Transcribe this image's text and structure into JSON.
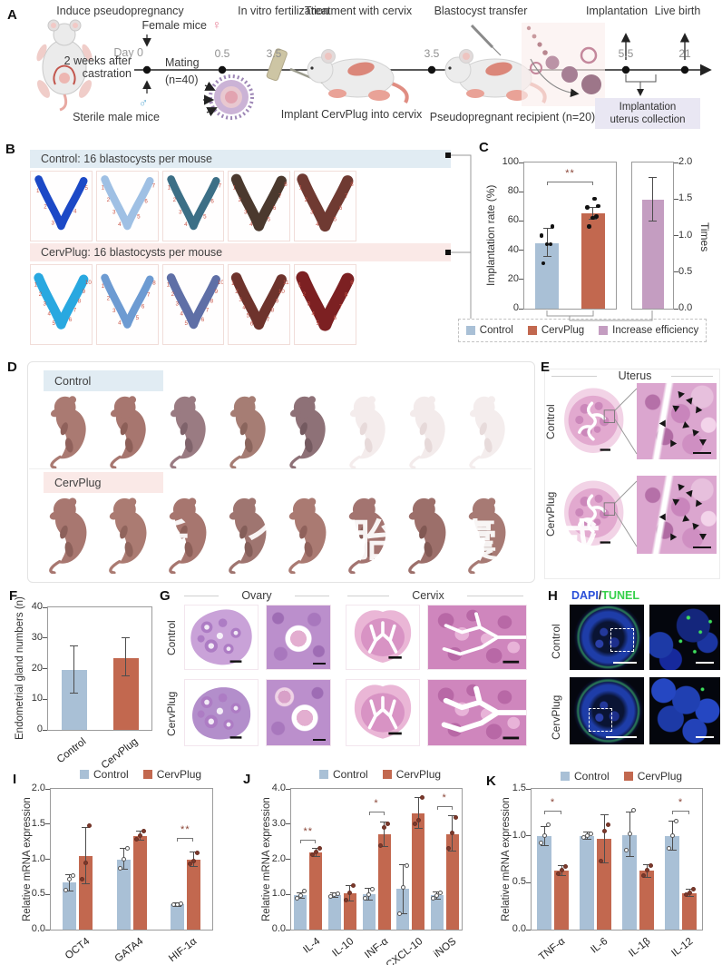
{
  "colors": {
    "control": "#a9c0d6",
    "cervplug": "#c2684f",
    "increase": "#c49dc1",
    "control_band": "#e1ecf3",
    "cervplug_band": "#fae9e7",
    "collection_box": "#e9e7f3",
    "dapi_blue": "#2b50d8",
    "tunel_green": "#35d04a"
  },
  "panelA": {
    "label": "A",
    "titles": {
      "step1": "Induce pseudopregnancy",
      "step2": "In vitro fertilization",
      "step3": "Treatment with cervix",
      "step4": "Blastocyst transfer",
      "step5": "Implantation",
      "step6": "Live birth"
    },
    "female_mice": "Female mice",
    "female_symbol": "♀",
    "male_symbol": "♂",
    "castration_line1": "2 weeks after",
    "castration_line2": "castration",
    "sterile_male": "Sterile male mice",
    "day0": "Day 0",
    "mating_line1": "Mating",
    "mating_line2": "(n=40)",
    "t05": "0.5",
    "t35a": "3.5",
    "t35b": "3.5",
    "t55": "5.5",
    "t21": "21",
    "implant_caption": "Implant CervPlug into cervix",
    "recipient_caption": "Pseudopregnant recipient (n=20)",
    "collection_line1": "Implantation",
    "collection_line2": "uterus collection"
  },
  "panelB": {
    "label": "B",
    "control_header": "Control: 16 blastocysts per mouse",
    "cervplug_header": "CervPlug: 16 blastocysts per mouse",
    "control_uteri": [
      {
        "color": "#1c49c6",
        "sites": 5,
        "thick": 9
      },
      {
        "color": "#9fc0e4",
        "sites": 7,
        "thick": 9
      },
      {
        "color": "#3c6f86",
        "sites": 7,
        "thick": 9
      },
      {
        "color": "#4b392e",
        "sites": 8,
        "thick": 12
      },
      {
        "color": "#6f3a32",
        "sites": 8,
        "thick": 13
      }
    ],
    "cervplug_uteri": [
      {
        "color": "#29a8e0",
        "sites": 10,
        "thick": 11
      },
      {
        "color": "#6d9bd2",
        "sites": 8,
        "thick": 9
      },
      {
        "color": "#5f6fa6",
        "sites": 10,
        "thick": 10
      },
      {
        "color": "#6e332c",
        "sites": 11,
        "thick": 12
      },
      {
        "color": "#7c2022",
        "sites": 9,
        "thick": 15
      }
    ]
  },
  "panelD": {
    "label": "D",
    "control_label": "Control",
    "cervplug_label": "CervPlug",
    "watermark": "析 个 胎 囊 成",
    "control_pups": [
      {
        "fill": "#aa7a72",
        "shade": "#8f615b"
      },
      {
        "fill": "#a7766f",
        "shade": "#8c5f58"
      },
      {
        "fill": "#9a7b82",
        "shade": "#7f636b"
      },
      {
        "fill": "#a67d74",
        "shade": "#8a655d"
      },
      {
        "fill": "#8e7177",
        "shade": "#745a60"
      },
      {
        "fill": "#f4ecec",
        "shade": "#e7dada"
      },
      {
        "fill": "#f3ebeb",
        "shade": "#e6d9d9"
      },
      {
        "fill": "#f4eded",
        "shade": "#e7dbdb"
      }
    ],
    "cervplug_pups": [
      {
        "fill": "#a87770",
        "shade": "#8c605a"
      },
      {
        "fill": "#ab7b72",
        "shade": "#90645c"
      },
      {
        "fill": "#a7766f",
        "shade": "#8c5f58"
      },
      {
        "fill": "#9f7570",
        "shade": "#845e59"
      },
      {
        "fill": "#aa7a72",
        "shade": "#8f615b"
      },
      {
        "fill": "#a37470",
        "shade": "#885d59"
      },
      {
        "fill": "#9c6f6a",
        "shade": "#815853"
      },
      {
        "fill": "#a77a74",
        "shade": "#8c635d"
      }
    ]
  },
  "panelE": {
    "label": "E",
    "title": "Uterus",
    "control_label": "Control",
    "cervplug_label": "CervPlug"
  },
  "panelG": {
    "label": "G",
    "ovary_title": "Ovary",
    "cervix_title": "Cervix",
    "control_label": "Control",
    "cervplug_label": "CervPlug"
  },
  "panelH": {
    "label": "H",
    "title_dapi": "DAPI",
    "title_sep": "/",
    "title_tunel": "TUNEL",
    "control_label": "Control",
    "cervplug_label": "CervPlug"
  },
  "panel_labels": {
    "C": "C",
    "F": "F",
    "I": "I",
    "J": "J",
    "K": "K"
  },
  "chart_data": {
    "C_rate": {
      "type": "bar",
      "ylabel": "Implantation rate (%)",
      "ylim": [
        0,
        100
      ],
      "yticks": [
        0,
        20,
        40,
        60,
        80,
        100
      ],
      "ytick_decimals": 0,
      "groups": [
        {
          "label": "Control",
          "series": "control",
          "value": 45,
          "err": [
            36,
            55
          ],
          "dots": [
            31,
            44,
            44,
            50,
            56
          ]
        },
        {
          "label": "CervPlug",
          "series": "cervplug",
          "value": 65,
          "err": [
            61,
            69
          ],
          "dots": [
            56,
            62,
            63,
            69,
            70,
            75
          ]
        }
      ],
      "sig": {
        "text": "**",
        "y": 87
      }
    },
    "C_times": {
      "type": "bar",
      "ylabel": "Times",
      "ylim": [
        0,
        2
      ],
      "yticks": [
        0,
        0.5,
        1,
        1.5,
        2
      ],
      "ytick_decimals": 1,
      "axis": "right",
      "groups": [
        {
          "label": "Increase efficiency",
          "series": "increase",
          "value": 1.49,
          "err": [
            1.2,
            1.79
          ]
        }
      ]
    },
    "C_legend": [
      {
        "series": "control",
        "label": "Control"
      },
      {
        "series": "cervplug",
        "label": "CervPlug"
      },
      {
        "series": "increase",
        "label": "Increase efficiency"
      }
    ],
    "F": {
      "type": "bar",
      "ylabel": "Endometrial gland numbers (n)",
      "ylim": [
        0,
        40
      ],
      "yticks": [
        0,
        10,
        20,
        30,
        40
      ],
      "ytick_decimals": 0,
      "groups": [
        {
          "label": "Control",
          "series": "control",
          "value": 19.5,
          "err": [
            12,
            27.5
          ]
        },
        {
          "label": "CervPlug",
          "series": "cervplug",
          "value": 23.5,
          "err": [
            17.5,
            30
          ]
        }
      ]
    },
    "I": {
      "type": "grouped-bar",
      "ylabel": "Relative mRNA expression",
      "ylim": [
        0,
        2
      ],
      "yticks": [
        0,
        0.5,
        1,
        1.5,
        2
      ],
      "ytick_decimals": 1,
      "legend": [
        {
          "series": "control",
          "label": "Control"
        },
        {
          "series": "cervplug",
          "label": "CervPlug"
        }
      ],
      "categories": [
        "OCT4",
        "GATA4",
        "HIF-1α"
      ],
      "series": [
        {
          "name": "control",
          "values": [
            0.67,
            1.0,
            0.36
          ],
          "err": [
            [
              0.55,
              0.78
            ],
            [
              0.86,
              1.15
            ],
            [
              0.335,
              0.385
            ]
          ],
          "dots": [
            [
              0.56,
              0.72,
              0.77
            ],
            [
              0.87,
              1.0,
              1.15
            ],
            [
              0.35,
              0.36,
              0.37
            ]
          ]
        },
        {
          "name": "cervplug",
          "values": [
            1.05,
            1.33,
            1.0
          ],
          "err": [
            [
              0.65,
              1.45
            ],
            [
              1.27,
              1.4
            ],
            [
              0.9,
              1.1
            ]
          ],
          "dots": [
            [
              0.72,
              0.95,
              1.48
            ],
            [
              1.28,
              1.33,
              1.4
            ],
            [
              0.93,
              0.97,
              1.09
            ]
          ]
        }
      ],
      "sigs": [
        {
          "cat": 2,
          "text": "**",
          "y": 1.3
        }
      ]
    },
    "J": {
      "type": "grouped-bar",
      "ylabel": "Relative mRNA expression",
      "ylim": [
        0,
        4
      ],
      "yticks": [
        0,
        1,
        2,
        3,
        4
      ],
      "ytick_decimals": 1,
      "legend": [
        {
          "series": "control",
          "label": "Control"
        },
        {
          "series": "cervplug",
          "label": "CervPlug"
        }
      ],
      "categories": [
        "IL-4",
        "IL-10",
        "INF-α",
        "CXCL-10",
        "iNOS"
      ],
      "series": [
        {
          "name": "control",
          "values": [
            0.97,
            0.98,
            1.0,
            1.15,
            0.97
          ],
          "err": [
            [
              0.9,
              1.04
            ],
            [
              0.92,
              1.04
            ],
            [
              0.85,
              1.17
            ],
            [
              0.45,
              1.85
            ],
            [
              0.87,
              1.07
            ]
          ],
          "dots": [
            [
              0.9,
              0.97,
              1.1
            ],
            [
              0.93,
              1.0,
              1.03
            ],
            [
              0.88,
              1.0,
              1.15
            ],
            [
              0.46,
              1.2,
              1.82
            ],
            [
              0.9,
              0.97,
              1.05
            ]
          ]
        },
        {
          "name": "cervplug",
          "values": [
            2.2,
            1.03,
            2.7,
            3.3,
            2.72
          ],
          "err": [
            [
              2.08,
              2.32
            ],
            [
              0.82,
              1.24
            ],
            [
              2.35,
              3.05
            ],
            [
              2.88,
              3.75
            ],
            [
              2.22,
              3.25
            ]
          ],
          "dots": [
            [
              2.12,
              2.2,
              2.32
            ],
            [
              0.85,
              1.05,
              1.25
            ],
            [
              2.4,
              2.9,
              3.0
            ],
            [
              3.0,
              3.1,
              3.75
            ],
            [
              2.3,
              2.75,
              3.2
            ]
          ]
        }
      ],
      "sigs": [
        {
          "cat": 0,
          "text": "**",
          "y": 2.55
        },
        {
          "cat": 2,
          "text": "*",
          "y": 3.35
        },
        {
          "cat": 4,
          "text": "*",
          "y": 3.5
        }
      ]
    },
    "K": {
      "type": "grouped-bar",
      "ylabel": "Relative mRNA expression",
      "ylim": [
        0,
        1.5
      ],
      "yticks": [
        0,
        0.5,
        1,
        1.5
      ],
      "ytick_decimals": 1,
      "legend": [
        {
          "series": "control",
          "label": "Control"
        },
        {
          "series": "cervplug",
          "label": "CervPlug"
        }
      ],
      "categories": [
        "TNF-α",
        "IL-6",
        "IL-1β",
        "IL-12"
      ],
      "series": [
        {
          "name": "control",
          "values": [
            1.0,
            1.0,
            1.01,
            1.0
          ],
          "err": [
            [
              0.9,
              1.1
            ],
            [
              0.96,
              1.04
            ],
            [
              0.78,
              1.25
            ],
            [
              0.85,
              1.16
            ]
          ],
          "dots": [
            [
              0.92,
              1.0,
              1.12
            ],
            [
              0.98,
              1.0,
              1.02
            ],
            [
              0.85,
              1.02,
              1.27
            ],
            [
              0.87,
              1.0,
              1.16
            ]
          ]
        },
        {
          "name": "cervplug",
          "values": [
            0.63,
            0.97,
            0.63,
            0.39
          ],
          "err": [
            [
              0.58,
              0.68
            ],
            [
              0.71,
              1.22
            ],
            [
              0.56,
              0.69
            ],
            [
              0.35,
              0.43
            ]
          ],
          "dots": [
            [
              0.6,
              0.63,
              0.67
            ],
            [
              0.73,
              1.05,
              1.12
            ],
            [
              0.58,
              0.63,
              0.68
            ],
            [
              0.37,
              0.39,
              0.43
            ]
          ]
        }
      ],
      "sigs": [
        {
          "cat": 0,
          "text": "*",
          "y": 1.27
        },
        {
          "cat": 3,
          "text": "*",
          "y": 1.27
        }
      ]
    }
  }
}
